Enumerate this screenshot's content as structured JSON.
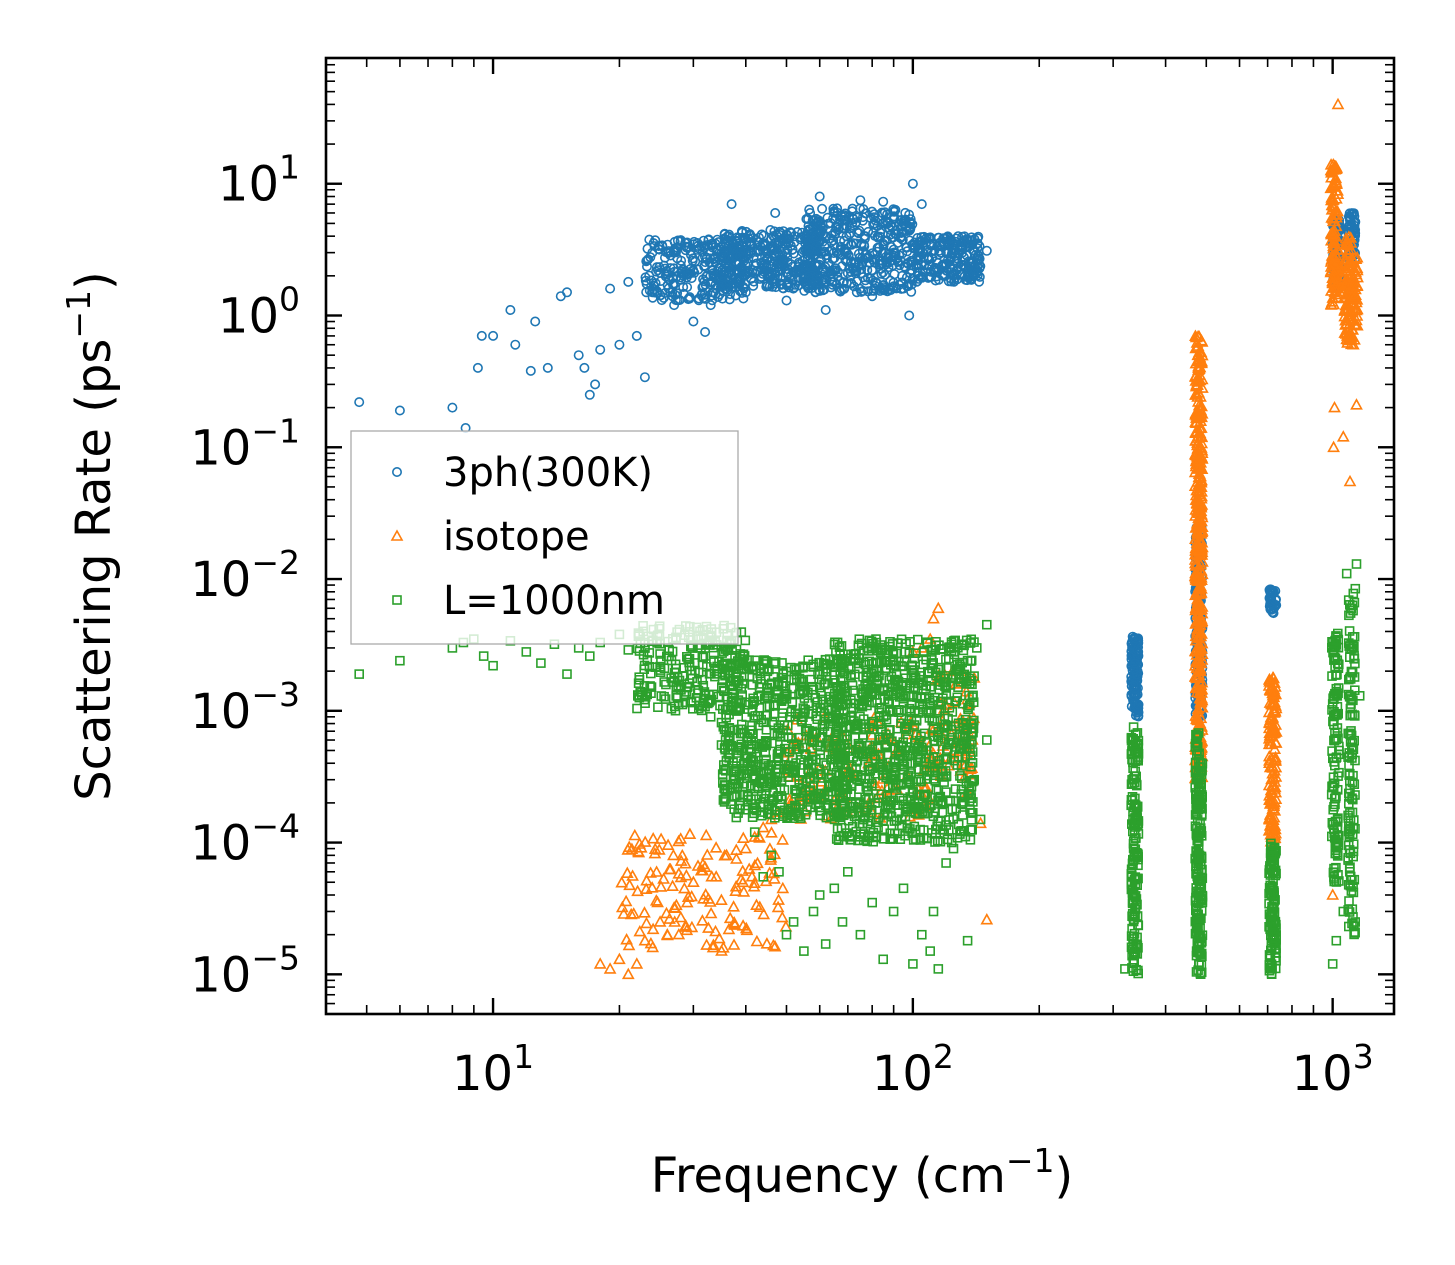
{
  "chart_data": {
    "type": "scatter",
    "xscale": "log",
    "yscale": "log",
    "xlabel": "Frequency (cm",
    "xlabel_sup": "−1",
    "xlabel_close": ")",
    "ylabel": "Scattering Rate (ps",
    "ylabel_sup": "−1",
    "ylabel_close": ")",
    "xlim": [
      4,
      1400
    ],
    "ylim": [
      5e-06,
      90
    ],
    "x_ticks": [
      {
        "value": 10,
        "base": "10",
        "exp": "1"
      },
      {
        "value": 100,
        "base": "10",
        "exp": "2"
      },
      {
        "value": 1000,
        "base": "10",
        "exp": "3"
      }
    ],
    "y_ticks": [
      {
        "value": 1e-05,
        "base": "10",
        "exp": "−5"
      },
      {
        "value": 0.0001,
        "base": "10",
        "exp": "−4"
      },
      {
        "value": 0.001,
        "base": "10",
        "exp": "−3"
      },
      {
        "value": 0.01,
        "base": "10",
        "exp": "−2"
      },
      {
        "value": 0.1,
        "base": "10",
        "exp": "−1"
      },
      {
        "value": 1,
        "base": "10",
        "exp": "0"
      },
      {
        "value": 10,
        "base": "10",
        "exp": "1"
      }
    ],
    "legend_position": "center-left",
    "series": [
      {
        "name": "3ph(300K)",
        "marker": "circle",
        "color": "#1f77b4",
        "points": [
          [
            4.8,
            0.22
          ],
          [
            6,
            0.19
          ],
          [
            8,
            0.2
          ],
          [
            8.6,
            0.14
          ],
          [
            9.2,
            0.4
          ],
          [
            9.4,
            0.7
          ],
          [
            10,
            0.7
          ],
          [
            11,
            1.1
          ],
          [
            11.3,
            0.6
          ],
          [
            12.3,
            0.38
          ],
          [
            12.6,
            0.9
          ],
          [
            13.5,
            0.4
          ],
          [
            14.5,
            1.4
          ],
          [
            15,
            1.5
          ],
          [
            16,
            0.5
          ],
          [
            16.5,
            0.4
          ],
          [
            17,
            0.25
          ],
          [
            17.5,
            0.3
          ],
          [
            18,
            0.55
          ],
          [
            19,
            1.6
          ],
          [
            20,
            0.6
          ],
          [
            21,
            1.8
          ],
          [
            22,
            0.7
          ],
          [
            23,
            0.34
          ],
          [
            24,
            1.5
          ],
          [
            25,
            2.1
          ],
          [
            27,
            1.2
          ],
          [
            28,
            2.4
          ],
          [
            30,
            0.9
          ],
          [
            32,
            0.75
          ],
          [
            33,
            1.2
          ],
          [
            35,
            3
          ],
          [
            37,
            7
          ],
          [
            40,
            1.5
          ],
          [
            44,
            2.5
          ],
          [
            47,
            6
          ],
          [
            50,
            1.3
          ],
          [
            55,
            4
          ],
          [
            60,
            8
          ],
          [
            62,
            1.1
          ],
          [
            66,
            6.5
          ],
          [
            70,
            2.1
          ],
          [
            75,
            7.5
          ],
          [
            80,
            1.4
          ],
          [
            85,
            7.3
          ],
          [
            90,
            3
          ],
          [
            95,
            1.6
          ],
          [
            98,
            1.0
          ],
          [
            100,
            10
          ],
          [
            105,
            7
          ],
          [
            110,
            3.5
          ],
          [
            120,
            2.4
          ],
          [
            125,
            2.0
          ],
          [
            130,
            3.2
          ],
          [
            140,
            3.1
          ],
          [
            150,
            3.1
          ]
        ],
        "bands": [
          {
            "x": [
              23,
              40
            ],
            "y": [
              1.3,
              3.8
            ],
            "n": 260
          },
          {
            "x": [
              35,
              60
            ],
            "y": [
              1.6,
              4.5
            ],
            "n": 360
          },
          {
            "x": [
              55,
              100
            ],
            "y": [
              1.5,
              6.5
            ],
            "n": 420
          },
          {
            "x": [
              100,
              145
            ],
            "y": [
              1.8,
              4.0
            ],
            "n": 220
          }
        ],
        "columns": [
          {
            "x": 338,
            "y": [
              0.0009,
              0.0037
            ],
            "n": 130
          },
          {
            "x": 480,
            "y": [
              0.0009,
              0.025
            ],
            "n": 170
          },
          {
            "x": 720,
            "y": [
              0.0055,
              0.0085
            ],
            "n": 40
          },
          {
            "x": 1020,
            "y": [
              1.6,
              5.5
            ],
            "n": 110
          },
          {
            "x": 1110,
            "y": [
              2.6,
              6.0
            ],
            "n": 60
          }
        ]
      },
      {
        "name": "isotope",
        "marker": "triangle",
        "color": "#ff7f0e",
        "points": [
          [
            18,
            1.2e-05
          ],
          [
            19,
            1.1e-05
          ],
          [
            20,
            1.3e-05
          ],
          [
            21,
            1e-05
          ],
          [
            22,
            1.2e-05
          ],
          [
            23,
            1.8e-05
          ],
          [
            24,
            1.6e-05
          ],
          [
            25,
            2.5e-05
          ],
          [
            26,
            2e-05
          ],
          [
            27,
            3.2e-05
          ],
          [
            28,
            2.7e-05
          ],
          [
            29,
            3.5e-05
          ],
          [
            30,
            5e-05
          ],
          [
            32,
            6.5e-05
          ],
          [
            34,
            5.5e-05
          ],
          [
            36,
            8e-05
          ],
          [
            38,
            7.5e-05
          ],
          [
            40,
            9e-05
          ],
          [
            42,
            0.00011
          ],
          [
            44,
            0.00013
          ],
          [
            46,
            0.00015
          ],
          [
            48,
            0.00017
          ],
          [
            90,
            0.00025
          ],
          [
            100,
            0.0028
          ],
          [
            105,
            0.003
          ],
          [
            110,
            0.0035
          ],
          [
            112,
            0.005
          ],
          [
            115,
            0.006
          ],
          [
            120,
            0.0011
          ],
          [
            125,
            0.0005
          ],
          [
            130,
            0.00035
          ],
          [
            135,
            0.00024
          ],
          [
            145,
            0.00014
          ],
          [
            150,
            2.6e-05
          ],
          [
            1000,
            4e-05
          ],
          [
            1005,
            0.1
          ],
          [
            1010,
            0.2
          ],
          [
            1030,
            40
          ],
          [
            1060,
            0.12
          ],
          [
            1100,
            0.055
          ],
          [
            1140,
            0.21
          ],
          [
            1120,
            0.6
          ]
        ],
        "bands": [
          {
            "x": [
              20,
              50
            ],
            "y": [
              1.5e-05,
              0.00012
            ],
            "n": 140
          },
          {
            "x": [
              50,
              110
            ],
            "y": [
              0.00015,
              0.0009
            ],
            "n": 120
          },
          {
            "x": [
              110,
              140
            ],
            "y": [
              0.0003,
              0.002
            ],
            "n": 60
          }
        ],
        "columns": [
          {
            "x": 480,
            "y": [
              0.0003,
              0.7
            ],
            "n": 420
          },
          {
            "x": 720,
            "y": [
              0.0001,
              0.0018
            ],
            "n": 140
          },
          {
            "x": 1010,
            "y": [
              1.2,
              14
            ],
            "n": 120
          },
          {
            "x": 1090,
            "y": [
              0.6,
              4.0
            ],
            "n": 90
          },
          {
            "x": 1125,
            "y": [
              0.6,
              2.8
            ],
            "n": 50
          }
        ]
      },
      {
        "name": "L=1000nm",
        "marker": "square",
        "color": "#2ca02c",
        "points": [
          [
            4.8,
            0.0019
          ],
          [
            6,
            0.0024
          ],
          [
            8,
            0.003
          ],
          [
            8.5,
            0.0033
          ],
          [
            9,
            0.0035
          ],
          [
            9.5,
            0.0026
          ],
          [
            10,
            0.0022
          ],
          [
            11,
            0.0034
          ],
          [
            12,
            0.0028
          ],
          [
            13,
            0.0023
          ],
          [
            14,
            0.0032
          ],
          [
            15,
            0.0019
          ],
          [
            16,
            0.003
          ],
          [
            17,
            0.0026
          ],
          [
            18,
            0.0033
          ],
          [
            20,
            0.0038
          ],
          [
            21,
            0.0029
          ],
          [
            23,
            0.0033
          ],
          [
            25,
            0.0027
          ],
          [
            27,
            0.0018
          ],
          [
            29,
            0.0015
          ],
          [
            31,
            0.0011
          ],
          [
            33,
            0.0009
          ],
          [
            35,
            0.00055
          ],
          [
            38,
            0.00035
          ],
          [
            40,
            0.00045
          ],
          [
            42,
            0.00012
          ],
          [
            44,
            5.5e-05
          ],
          [
            46,
            8e-05
          ],
          [
            48,
            6e-05
          ],
          [
            50,
            2e-05
          ],
          [
            52,
            2.5e-05
          ],
          [
            55,
            1.5e-05
          ],
          [
            58,
            3e-05
          ],
          [
            60,
            4e-05
          ],
          [
            62,
            1.7e-05
          ],
          [
            65,
            4.5e-05
          ],
          [
            68,
            2.5e-05
          ],
          [
            70,
            6e-05
          ],
          [
            75,
            2e-05
          ],
          [
            80,
            3.5e-05
          ],
          [
            85,
            1.3e-05
          ],
          [
            90,
            3e-05
          ],
          [
            95,
            4.5e-05
          ],
          [
            100,
            1.2e-05
          ],
          [
            105,
            2e-05
          ],
          [
            110,
            1.5e-05
          ],
          [
            112,
            3e-05
          ],
          [
            115,
            1.1e-05
          ],
          [
            120,
            7e-05
          ],
          [
            125,
            9e-05
          ],
          [
            135,
            1.8e-05
          ],
          [
            140,
            0.0003
          ],
          [
            145,
            0.00015
          ],
          [
            150,
            0.0006
          ],
          [
            135,
            0.0024
          ],
          [
            142,
            0.003
          ],
          [
            150,
            0.0045
          ],
          [
            320,
            1.1e-05
          ],
          [
            1000,
            1.2e-05
          ],
          [
            1020,
            1.8e-05
          ],
          [
            1060,
            3e-05
          ],
          [
            1100,
            6.5e-05
          ],
          [
            1120,
            0.00013
          ],
          [
            1140,
            0.013
          ],
          [
            1160,
            0.0013
          ],
          [
            1080,
            0.011
          ]
        ],
        "bands": [
          {
            "x": [
              35,
              70
            ],
            "y": [
              0.00015,
              0.0025
            ],
            "n": 650
          },
          {
            "x": [
              65,
              140
            ],
            "y": [
              0.0001,
              0.0035
            ],
            "n": 900
          },
          {
            "x": [
              22,
              40
            ],
            "y": [
              0.001,
              0.0045
            ],
            "n": 220
          }
        ],
        "columns": [
          {
            "x": 338,
            "y": [
              1e-05,
              0.0009
            ],
            "n": 160
          },
          {
            "x": 480,
            "y": [
              1e-05,
              0.0007
            ],
            "n": 200
          },
          {
            "x": 720,
            "y": [
              1e-05,
              0.0001
            ],
            "n": 120
          },
          {
            "x": 1015,
            "y": [
              5e-05,
              0.004
            ],
            "n": 120
          },
          {
            "x": 1110,
            "y": [
              2e-05,
              0.009
            ],
            "n": 120
          }
        ]
      }
    ]
  }
}
